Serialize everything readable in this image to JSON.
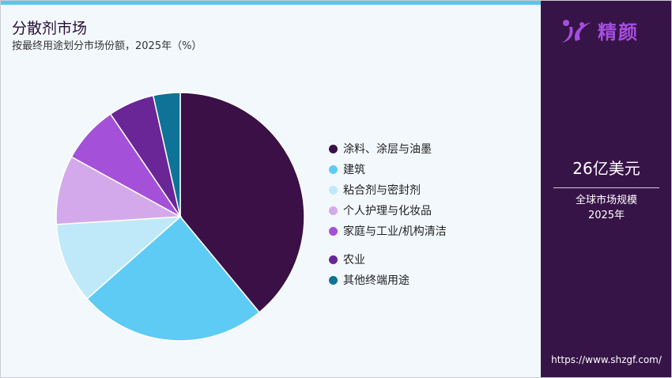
{
  "header": {
    "title": "分散剂市场",
    "subtitle": "按最终用途划分市场份额，2025年（%）"
  },
  "chart_data": {
    "type": "pie",
    "title": "分散剂市场",
    "subtitle": "按最终用途划分市场份额，2025年（%）",
    "legend_position": "right",
    "categories": [
      "涂料、涂层与油墨",
      "建筑",
      "粘合剂与密封剂",
      "个人护理与化妆品",
      "家庭与工业/机构清洁",
      "农业",
      "其他终端用途"
    ],
    "values": [
      39,
      24.5,
      10.5,
      9,
      7.5,
      6,
      3.5
    ],
    "colors": [
      "#3a1046",
      "#5ecbf5",
      "#bfe9f9",
      "#d4a9ec",
      "#a550d8",
      "#6a2596",
      "#0e7396"
    ]
  },
  "panel": {
    "logo_text": "精颜",
    "value": "26亿美元",
    "caption_line1": "全球市场规模",
    "caption_line2": "2025年",
    "url": "https://www.shzgf.com/"
  }
}
